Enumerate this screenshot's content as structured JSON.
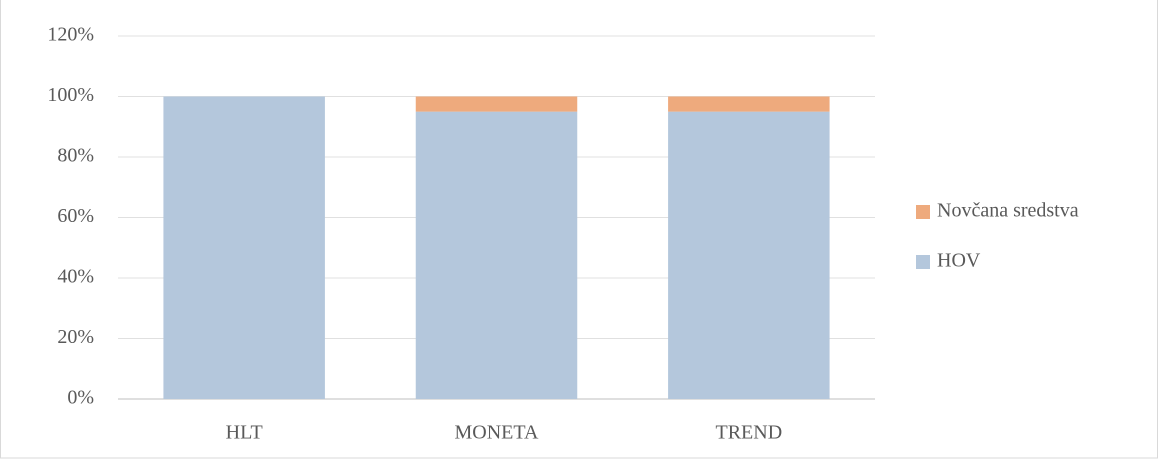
{
  "chart_data": {
    "type": "stacked_bar",
    "categories": [
      "HLT",
      "MONETA",
      "TREND"
    ],
    "series": [
      {
        "name": "HOV",
        "color": "#b4c7dc",
        "values": [
          100,
          95,
          95
        ]
      },
      {
        "name": "Novčana sredstva",
        "color": "#eeaa7d",
        "values": [
          0,
          5,
          5
        ]
      }
    ],
    "ylim": [
      0,
      120
    ],
    "yticks": [
      {
        "value": 0,
        "label": "0%"
      },
      {
        "value": 20,
        "label": "20%"
      },
      {
        "value": 40,
        "label": "40%"
      },
      {
        "value": 60,
        "label": "60%"
      },
      {
        "value": 80,
        "label": "80%"
      },
      {
        "value": 100,
        "label": "100%"
      },
      {
        "value": 120,
        "label": "120%"
      }
    ],
    "grid": true,
    "legend": "right"
  }
}
